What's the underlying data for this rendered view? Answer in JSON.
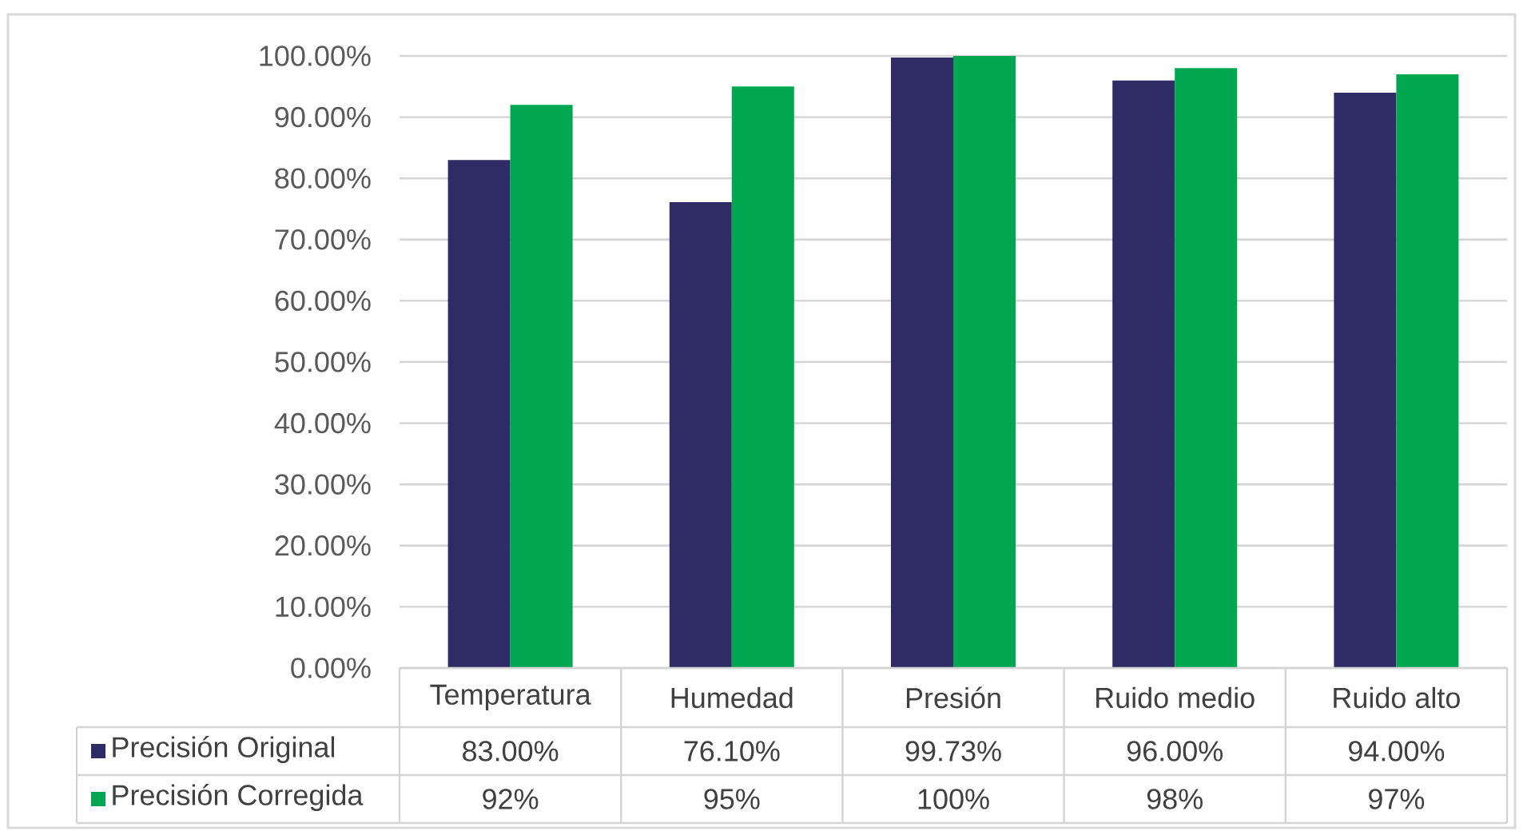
{
  "chart_data": {
    "type": "bar",
    "categories": [
      "Temperatura",
      "Humedad",
      "Presión",
      "Ruido medio",
      "Ruido alto"
    ],
    "series": [
      {
        "name": "Precisión Original",
        "color": "#2e2b65",
        "values": [
          83.0,
          76.1,
          99.73,
          96.0,
          94.0
        ],
        "value_labels": [
          "83.00%",
          "76.10%",
          "99.73%",
          "96.00%",
          "94.00%"
        ]
      },
      {
        "name": "Precisión Corregida",
        "color": "#00a650",
        "values": [
          92,
          95,
          100,
          98,
          97
        ],
        "value_labels": [
          "92%",
          "95%",
          "100%",
          "98%",
          "97%"
        ]
      }
    ],
    "ylim": [
      0,
      100
    ],
    "yticks": [
      {
        "value": 0,
        "label": "0.00%"
      },
      {
        "value": 10,
        "label": "10.00%"
      },
      {
        "value": 20,
        "label": "20.00%"
      },
      {
        "value": 30,
        "label": "30.00%"
      },
      {
        "value": 40,
        "label": "40.00%"
      },
      {
        "value": 50,
        "label": "50.00%"
      },
      {
        "value": 60,
        "label": "60.00%"
      },
      {
        "value": 70,
        "label": "70.00%"
      },
      {
        "value": 80,
        "label": "80.00%"
      },
      {
        "value": 90,
        "label": "90.00%"
      },
      {
        "value": 100,
        "label": "100.00%"
      }
    ],
    "grid": "y",
    "legend": "bottom"
  }
}
